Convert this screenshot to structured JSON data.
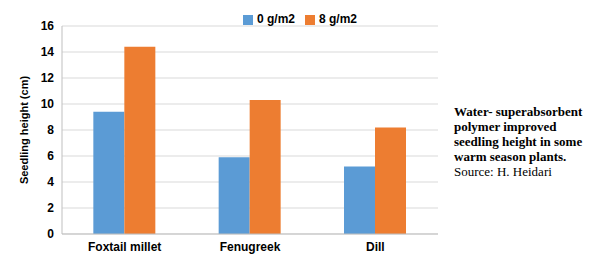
{
  "chart_data": {
    "type": "bar",
    "y_label": "Seedling height (cm)",
    "categories": [
      "Foxtail millet",
      "Fenugreek",
      "Dill"
    ],
    "series": [
      {
        "name": "0 g/m2",
        "color": "#5b9bd5",
        "values": [
          9.4,
          5.9,
          5.2
        ]
      },
      {
        "name": "8 g/m2",
        "color": "#ed7d31",
        "values": [
          14.4,
          10.3,
          8.2
        ]
      }
    ],
    "ylim": [
      0,
      16
    ],
    "yticks": [
      0,
      2,
      4,
      6,
      8,
      10,
      12,
      14,
      16
    ],
    "grid": true,
    "legend": "top",
    "annotations": [
      "Water- superabsorbent polymer improved seedling height in some warm season plants.",
      "Source: H. Heidari"
    ]
  }
}
